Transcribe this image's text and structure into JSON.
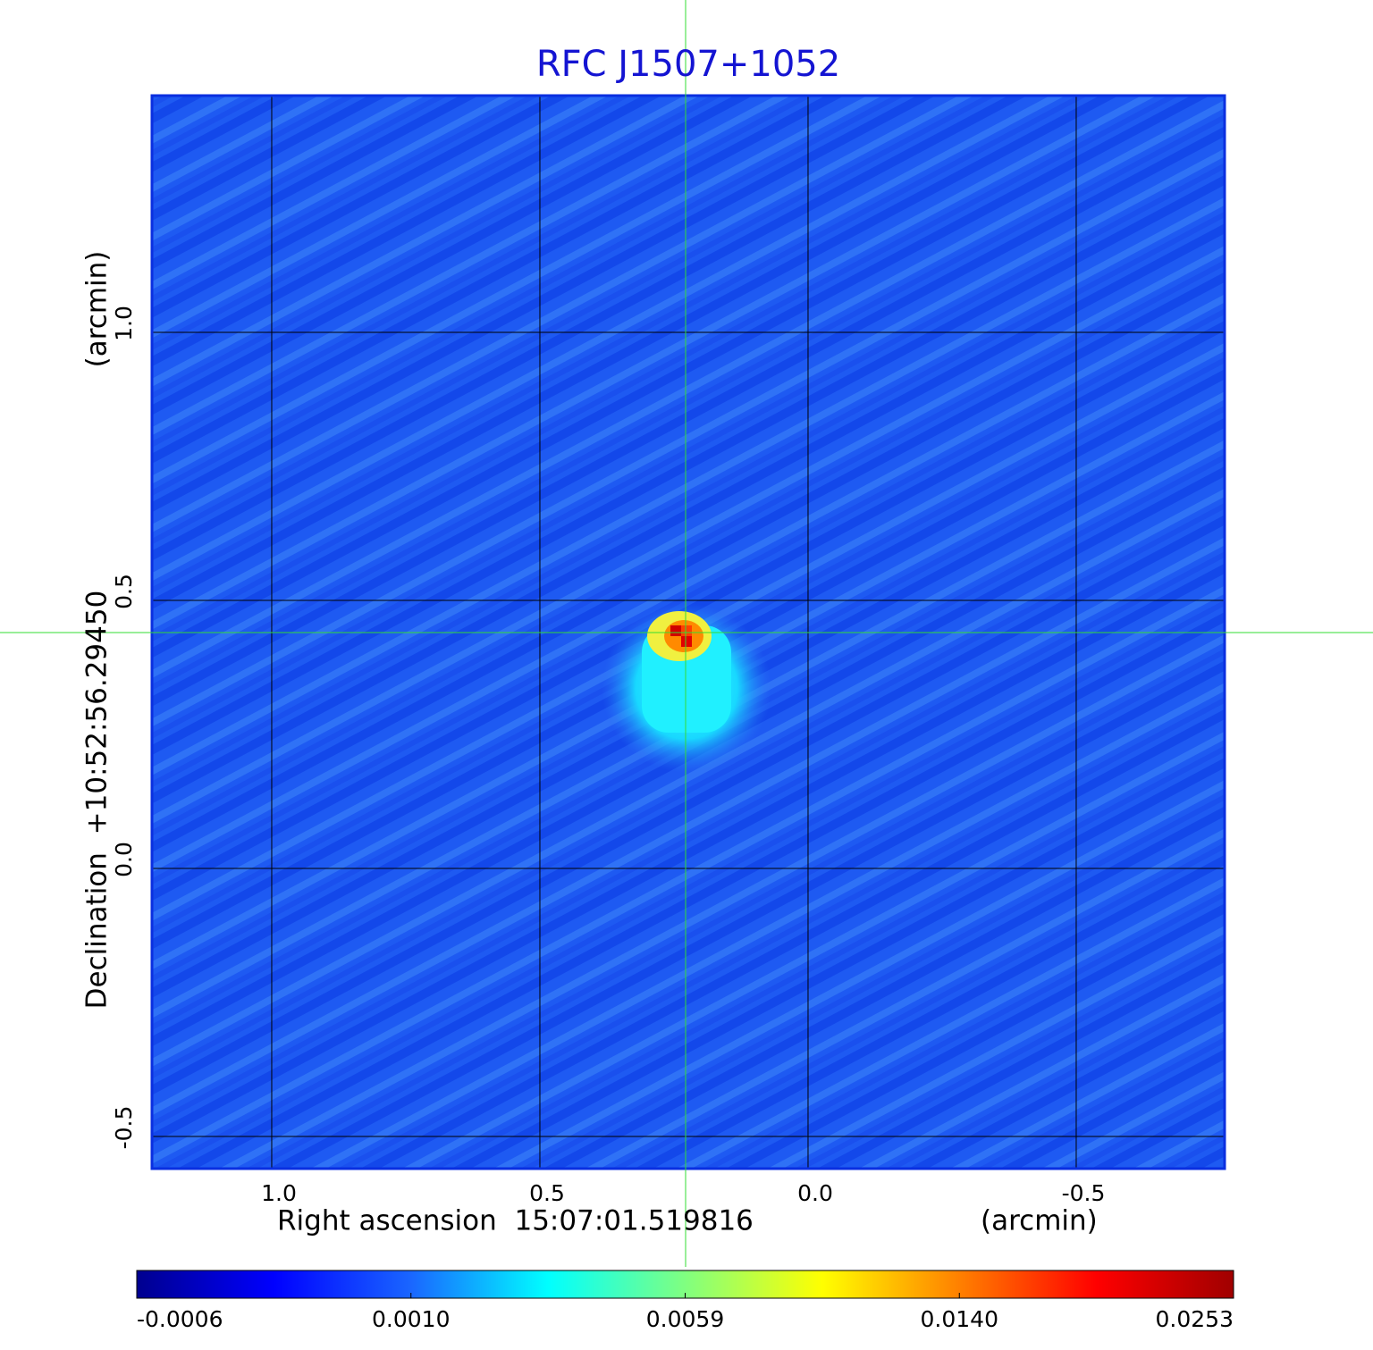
{
  "chart_data": {
    "type": "image",
    "title": "RFC J1507+1052",
    "x_label": "Right ascension  15:07:01.519816",
    "x_unit": "(arcmin)",
    "y_label": "Declination  +10:52:56.29450",
    "y_unit": "(arcmin)",
    "xlim": [
      1.2233,
      -0.7767
    ],
    "ylim": [
      -0.56,
      1.4417
    ],
    "xticks": [
      {
        "value": 1,
        "label": "1.0"
      },
      0.5,
      {
        "value": 0,
        "label": "0.0"
      },
      -0.5
    ],
    "yticks": [
      {
        "value": 1,
        "label": "1.0"
      },
      0.5,
      {
        "value": 0,
        "label": "0.0"
      },
      -0.5
    ],
    "grid": true,
    "grid_color": "#000000",
    "title_color": "#1414d2",
    "colorbar": {
      "ticks": [
        -0.0006,
        {
          "value": 0.001,
          "label": "0.0010"
        },
        0.0059,
        {
          "value": 0.014,
          "label": "0.0140"
        },
        0.0253
      ],
      "colormap": [
        "#00008f",
        "#0000ff",
        "#1a66ff",
        "#00ffff",
        "#80ff80",
        "#ffff00",
        "#ff8000",
        "#ff0000",
        "#a00000"
      ]
    }
  }
}
